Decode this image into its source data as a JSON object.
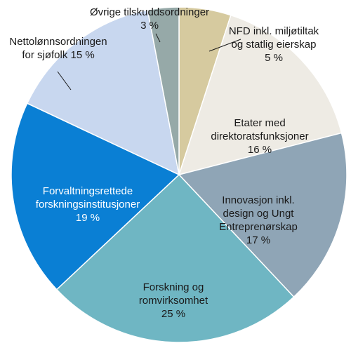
{
  "chart_data": {
    "type": "pie",
    "start_angle_deg": 0,
    "direction": "clockwise",
    "slices": [
      {
        "label_lines": [
          "NFD inkl. miljøtiltak",
          "og statlig eierskap",
          "5 %"
        ],
        "value": 5,
        "color": "#d6ca9f",
        "text_color": "dark",
        "label_position": "outside"
      },
      {
        "label_lines": [
          "Etater med",
          "direktoratsfunksjoner",
          "16 %"
        ],
        "value": 16,
        "color": "#eeebe4",
        "text_color": "dark",
        "label_position": "inside"
      },
      {
        "label_lines": [
          "Innovasjon inkl.",
          "design og Ungt",
          "Entreprenørskap",
          "17 %"
        ],
        "value": 17,
        "color": "#8fa5b6",
        "text_color": "dark",
        "label_position": "inside"
      },
      {
        "label_lines": [
          "Forskning og",
          "romvirksomhet",
          "25 %"
        ],
        "value": 25,
        "color": "#6fb6c3",
        "text_color": "dark",
        "label_position": "inside"
      },
      {
        "label_lines": [
          "Forvaltningsrettede",
          "forskningsinstitusjoner",
          "19 %"
        ],
        "value": 19,
        "color": "#0a7fd4",
        "text_color": "light",
        "label_position": "inside"
      },
      {
        "label_lines": [
          "Nettolønnsordningen",
          "for sjøfolk 15 %"
        ],
        "value": 15,
        "color": "#c8d7ef",
        "text_color": "dark",
        "label_position": "outside"
      },
      {
        "label_lines": [
          "Øvrige tilskuddsordninger",
          "3 %"
        ],
        "value": 3,
        "color": "#96a9a8",
        "text_color": "dark",
        "label_position": "outside"
      }
    ]
  }
}
